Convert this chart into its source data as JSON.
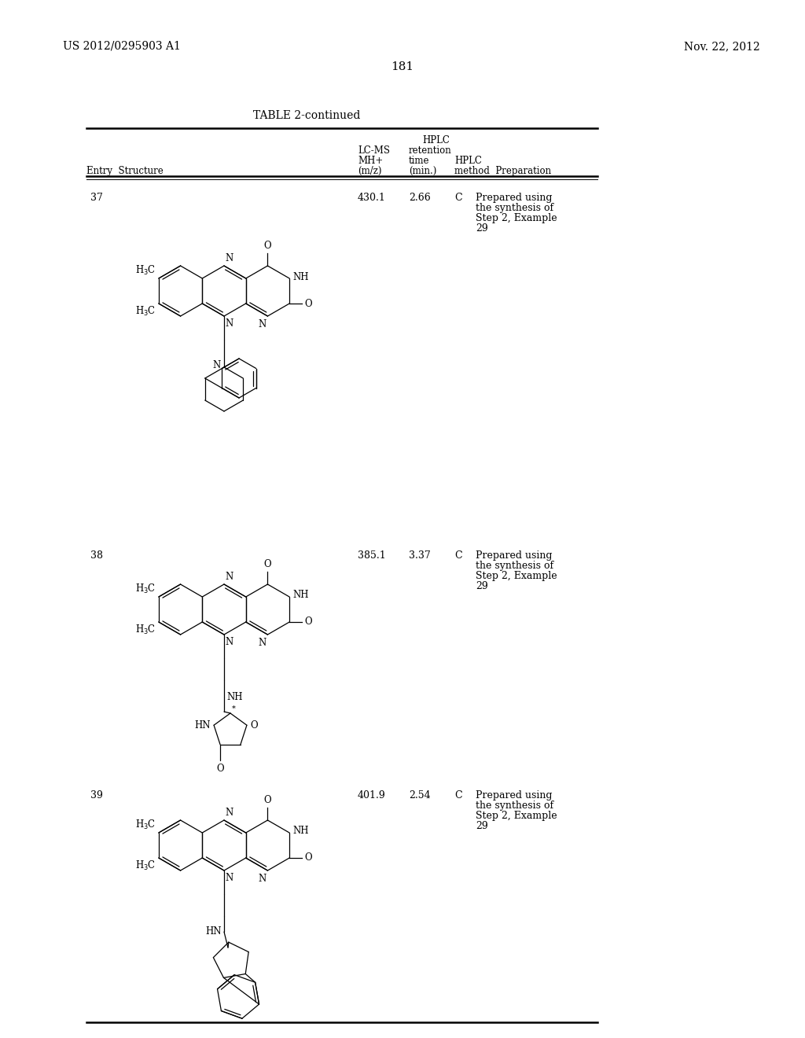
{
  "page_number": "181",
  "patent_number": "US 2012/0295903 A1",
  "patent_date": "Nov. 22, 2012",
  "table_title": "TABLE 2-continued",
  "rows": [
    {
      "entry": "37",
      "lcms": "430.1",
      "retention": "2.66",
      "hplc_method": "C",
      "preparation": [
        "Prepared using",
        "the synthesis of",
        "Step 2, Example",
        "29"
      ]
    },
    {
      "entry": "38",
      "lcms": "385.1",
      "retention": "3.37",
      "hplc_method": "C",
      "preparation": [
        "Prepared using",
        "the synthesis of",
        "Step 2, Example",
        "29"
      ]
    },
    {
      "entry": "39",
      "lcms": "401.9",
      "retention": "2.54",
      "hplc_method": "C",
      "preparation": [
        "Prepared using",
        "the synthesis of",
        "Step 2, Example",
        "29"
      ]
    }
  ],
  "bg_color": "#ffffff",
  "text_color": "#000000"
}
